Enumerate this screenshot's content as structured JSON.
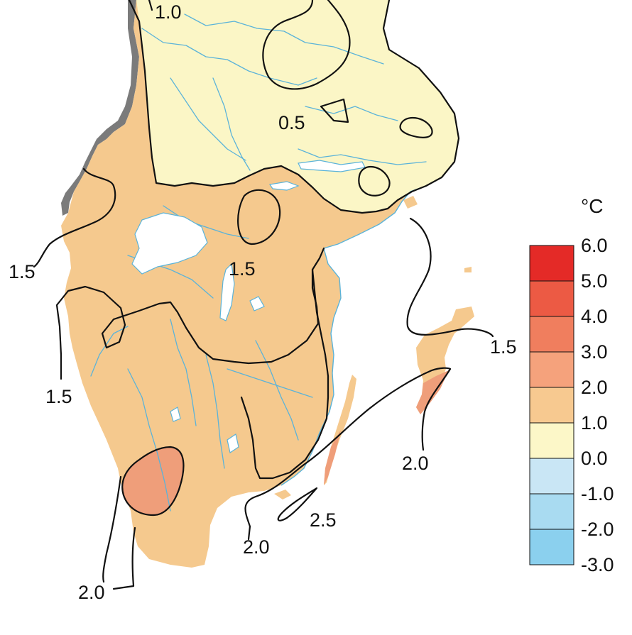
{
  "map": {
    "colors": {
      "band_0_1": "#fbf6c6",
      "band_1_2": "#f5c98e",
      "band_2_3": "#ef9e7a",
      "neighbor_land": "#7b7b7b",
      "water_lines": "#5bb3d9",
      "isoline": "#111111"
    },
    "contour_labels": [
      {
        "id": "c1",
        "text": "1.0"
      },
      {
        "id": "c2",
        "text": "0.5"
      },
      {
        "id": "c3",
        "text": "1.5"
      },
      {
        "id": "c4",
        "text": "1.5"
      },
      {
        "id": "c5",
        "text": "1.5"
      },
      {
        "id": "c6",
        "text": "1.5"
      },
      {
        "id": "c7",
        "text": "2.0"
      },
      {
        "id": "c8",
        "text": "2.5"
      },
      {
        "id": "c9",
        "text": "2.0"
      },
      {
        "id": "c10",
        "text": "2.0"
      }
    ]
  },
  "legend": {
    "unit": "°C",
    "ticks": [
      "6.0",
      "5.0",
      "4.0",
      "3.0",
      "2.0",
      "1.0",
      "0.0",
      "-1.0",
      "-2.0",
      "-3.0"
    ],
    "bands": [
      {
        "range": "5.0 to 6.0",
        "color": "#e42a27"
      },
      {
        "range": "4.0 to 5.0",
        "color": "#ec5a44"
      },
      {
        "range": "3.0 to 4.0",
        "color": "#f07e5e"
      },
      {
        "range": "2.0 to 3.0",
        "color": "#f5a27c"
      },
      {
        "range": "1.0 to 2.0",
        "color": "#f7c990"
      },
      {
        "range": "0.0 to 1.0",
        "color": "#fcf7c8"
      },
      {
        "range": "-1.0 to 0.0",
        "color": "#c9e6f5"
      },
      {
        "range": "-2.0 to -1.0",
        "color": "#a9dbf1"
      },
      {
        "range": "-3.0 to -2.0",
        "color": "#8bd0ee"
      }
    ]
  }
}
